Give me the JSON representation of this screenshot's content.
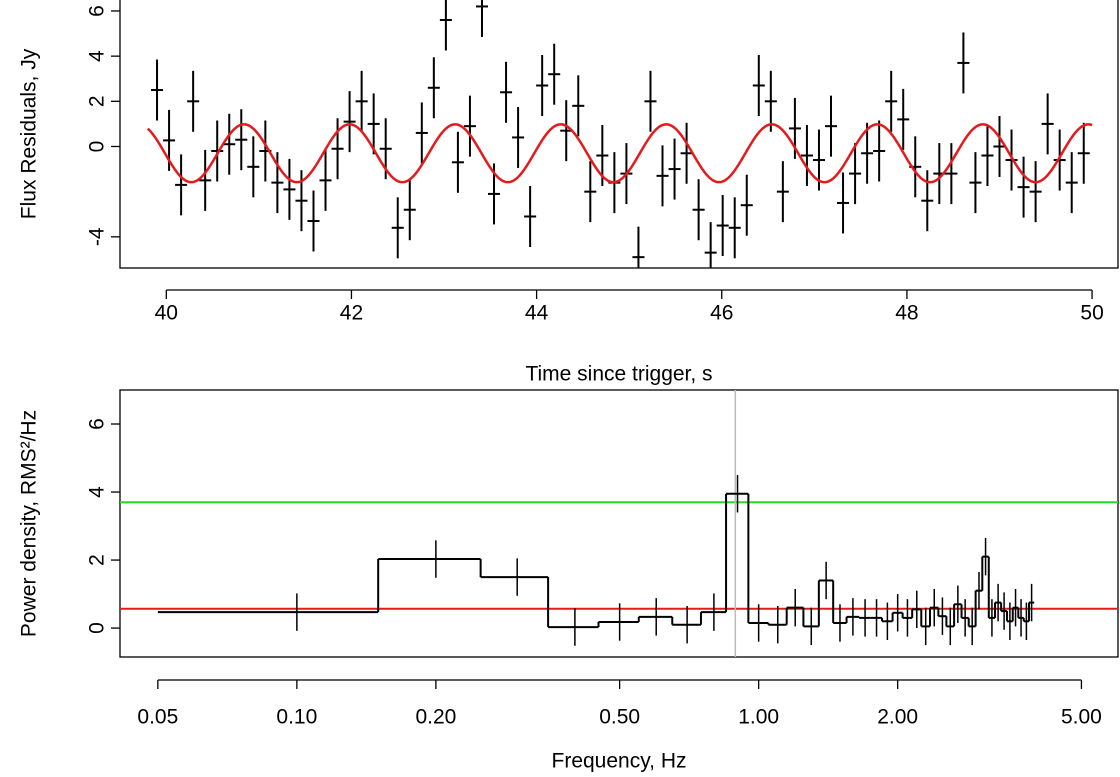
{
  "chart_data": [
    {
      "type": "errorbar",
      "xlabel": "Time since trigger, s",
      "ylabel": "Flux Residuals, Jy",
      "x": [
        39.9,
        40.03,
        40.16,
        40.29,
        40.42,
        40.55,
        40.68,
        40.81,
        40.94,
        41.07,
        41.2,
        41.33,
        41.46,
        41.59,
        41.72,
        41.85,
        41.98,
        42.11,
        42.24,
        42.37,
        42.5,
        42.63,
        42.76,
        42.89,
        43.02,
        43.15,
        43.28,
        43.41,
        43.54,
        43.67,
        43.8,
        43.93,
        44.06,
        44.19,
        44.32,
        44.45,
        44.58,
        44.71,
        44.84,
        44.97,
        45.1,
        45.23,
        45.36,
        45.49,
        45.62,
        45.75,
        45.88,
        46.01,
        46.14,
        46.27,
        46.4,
        46.53,
        46.66,
        46.79,
        46.92,
        47.05,
        47.18,
        47.31,
        47.44,
        47.57,
        47.7,
        47.83,
        47.96,
        48.09,
        48.22,
        48.35,
        48.48,
        48.61,
        48.74,
        48.87,
        49.0,
        49.13,
        49.26,
        49.39,
        49.52,
        49.65,
        49.78,
        49.91
      ],
      "values": [
        2.5,
        0.27,
        -1.7,
        2.0,
        -1.5,
        -0.2,
        0.1,
        0.3,
        -0.9,
        -0.2,
        -1.6,
        -1.9,
        -2.4,
        -3.3,
        -1.5,
        -0.1,
        1.1,
        2.0,
        1.0,
        -0.1,
        -3.6,
        -2.8,
        0.6,
        2.6,
        5.6,
        -0.7,
        0.9,
        6.2,
        -2.1,
        2.4,
        0.4,
        -3.1,
        2.7,
        3.2,
        0.7,
        1.8,
        -2.0,
        -0.4,
        -1.6,
        -1.2,
        -4.9,
        2.0,
        -1.3,
        -1.0,
        -0.3,
        -2.8,
        -4.7,
        -3.5,
        -3.6,
        -2.6,
        2.7,
        2.0,
        -2.0,
        0.8,
        -0.4,
        -0.6,
        0.9,
        -2.5,
        -1.2,
        -0.3,
        -0.2,
        2.0,
        1.2,
        -0.9,
        -2.4,
        -1.2,
        -1.2,
        3.7,
        -1.6,
        -0.4,
        0.0,
        -0.6,
        -1.8,
        -2.0,
        1.0,
        -0.6,
        -1.6,
        -0.3
      ],
      "error": 1.35,
      "xerror": 0.065,
      "color": "#000000",
      "fit": {
        "offset": -0.3,
        "amplitude": 1.28,
        "period": 1.14,
        "peak_time": 41.98,
        "xrange": [
          39.8,
          50
        ],
        "color": "#e41a1c"
      },
      "xlim": [
        39.5,
        50.28
      ],
      "ylim": [
        -5.38,
        6.53
      ],
      "xticks": [
        40,
        42,
        44,
        46,
        48,
        50
      ],
      "yticks": [
        -4,
        0,
        2,
        4,
        6
      ]
    },
    {
      "type": "histogram",
      "xlabel": "Frequency, Hz",
      "ylabel": "Power density, RMS²/Hz",
      "log_x": true,
      "bins": [
        0.05,
        0.15,
        0.25,
        0.35,
        0.45,
        0.55,
        0.65,
        0.75,
        0.85,
        0.95,
        1.05,
        1.15,
        1.25,
        1.35,
        1.45,
        1.55,
        1.65,
        1.75,
        1.85,
        1.95,
        2.05,
        2.15,
        2.25,
        2.35,
        2.45,
        2.55,
        2.65,
        2.75,
        2.85,
        2.95,
        3.05,
        3.15,
        3.25,
        3.35,
        3.45,
        3.55,
        3.65,
        3.75,
        3.85,
        3.95
      ],
      "values": [
        0.47,
        2.03,
        1.5,
        0.03,
        0.18,
        0.33,
        0.1,
        0.47,
        3.95,
        0.15,
        0.1,
        0.6,
        0.05,
        1.4,
        0.15,
        0.33,
        0.3,
        0.3,
        0.2,
        0.45,
        0.3,
        0.55,
        0.05,
        0.6,
        0.35,
        0.05,
        0.7,
        0.3,
        0.05,
        1.1,
        2.1,
        0.3,
        0.75,
        0.5,
        0.2,
        0.6,
        0.3,
        0.2,
        0.75
      ],
      "error": 0.55,
      "color": "#000000",
      "hlines": [
        {
          "value": 3.7,
          "color": "#22dd22"
        },
        {
          "value": 0.57,
          "color": "#e41a1c"
        }
      ],
      "vline": {
        "value": 0.89,
        "color": "#bbbbbb"
      },
      "xlim": [
        0.0414,
        6.0
      ],
      "ylim": [
        -0.85,
        7.0
      ],
      "xticks": [
        {
          "value": 0.05,
          "label": "0.05"
        },
        {
          "value": 0.1,
          "label": "0.10"
        },
        {
          "value": 0.2,
          "label": "0.20"
        },
        {
          "value": 0.5,
          "label": "0.50"
        },
        {
          "value": 1,
          "label": "1.00"
        },
        {
          "value": 2,
          "label": "2.00"
        },
        {
          "value": 5,
          "label": "5.00"
        }
      ],
      "yticks": [
        0,
        2,
        4,
        6
      ]
    }
  ]
}
